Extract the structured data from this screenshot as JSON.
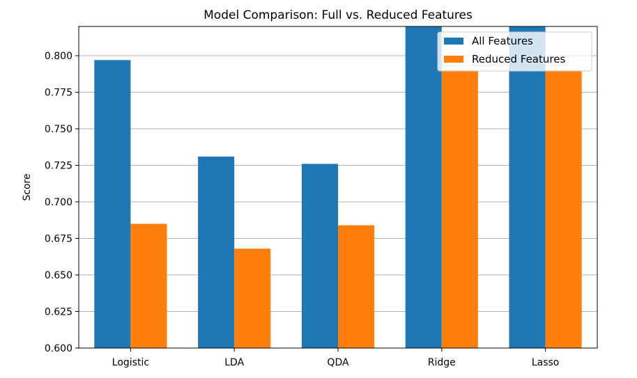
{
  "chart_data": {
    "type": "bar",
    "title": "Model Comparison: Full vs. Reduced Features",
    "xlabel": "",
    "ylabel": "Score",
    "categories": [
      "Logistic",
      "LDA",
      "QDA",
      "Ridge",
      "Lasso"
    ],
    "series": [
      {
        "name": "All Features",
        "color": "#1f77b4",
        "values": [
          0.797,
          0.731,
          0.726,
          0.83,
          0.83
        ]
      },
      {
        "name": "Reduced Features",
        "color": "#ff7f0e",
        "values": [
          0.685,
          0.668,
          0.684,
          0.79,
          0.79
        ]
      }
    ],
    "ylim": [
      0.6,
      0.82
    ],
    "yticks": [
      "0.600",
      "0.625",
      "0.650",
      "0.675",
      "0.700",
      "0.725",
      "0.750",
      "0.775",
      "0.800"
    ],
    "grid": "horizontal",
    "legend_position": "top-right"
  }
}
